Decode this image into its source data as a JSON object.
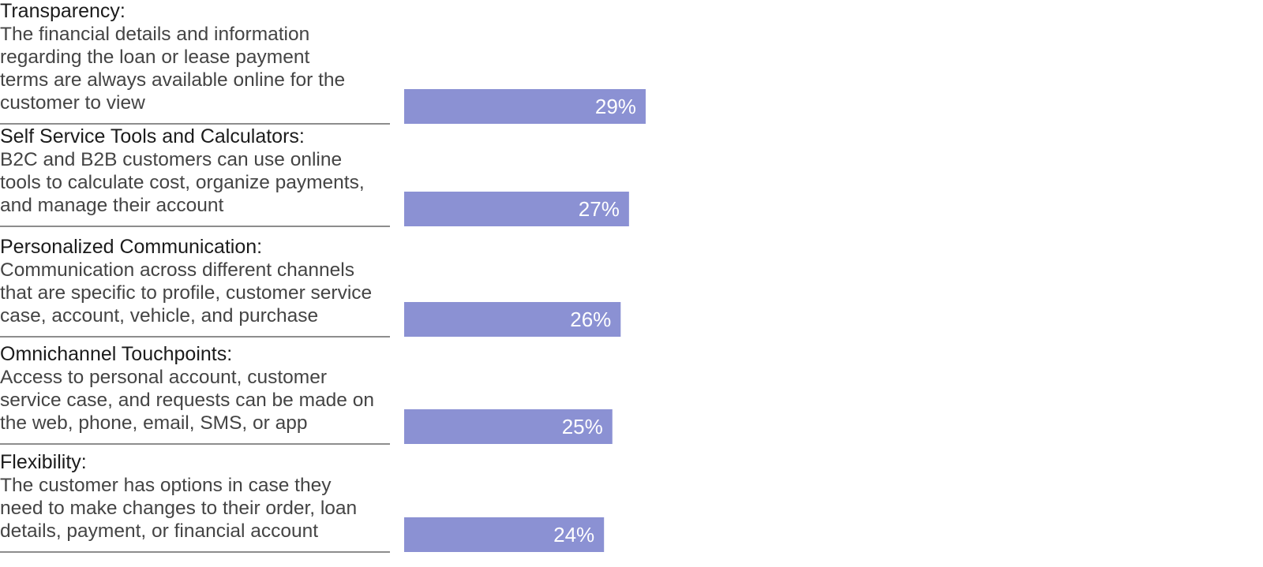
{
  "chart_data": {
    "type": "bar",
    "orientation": "horizontal",
    "categories": [
      {
        "heading": "Transparency:",
        "lines": [
          "The financial details and information",
          "regarding the loan or lease payment",
          "terms are always available online for the",
          "customer to view"
        ]
      },
      {
        "heading": "Self Service Tools and Calculators:",
        "lines": [
          "B2C and B2B customers can use online",
          "tools to calculate cost, organize payments,",
          "and manage their account"
        ]
      },
      {
        "heading": "Personalized Communication:",
        "lines": [
          "Communication across different channels",
          "that are specific to profile, customer service",
          "case, account, vehicle, and purchase"
        ]
      },
      {
        "heading": "Omnichannel Touchpoints:",
        "lines": [
          "Access to personal account, customer",
          "service case, and requests can be made on",
          "the web, phone, email, SMS, or app"
        ]
      },
      {
        "heading": "Flexibility:",
        "lines": [
          "The customer has options in case they",
          "need to make changes to their order, loan",
          "details, payment, or financial account"
        ]
      }
    ],
    "values": [
      29,
      27,
      26,
      25,
      24
    ],
    "value_labels": [
      "29%",
      "27%",
      "26%",
      "25%",
      "24%"
    ],
    "unit": "%",
    "xlim": [
      0,
      100
    ],
    "grid": false,
    "legend": "none",
    "colors": {
      "bar": "#8b91d3",
      "bar_label": "#ffffff",
      "heading": "#1b1b1b",
      "description": "#444444",
      "rule": "#8d8d8d"
    }
  }
}
